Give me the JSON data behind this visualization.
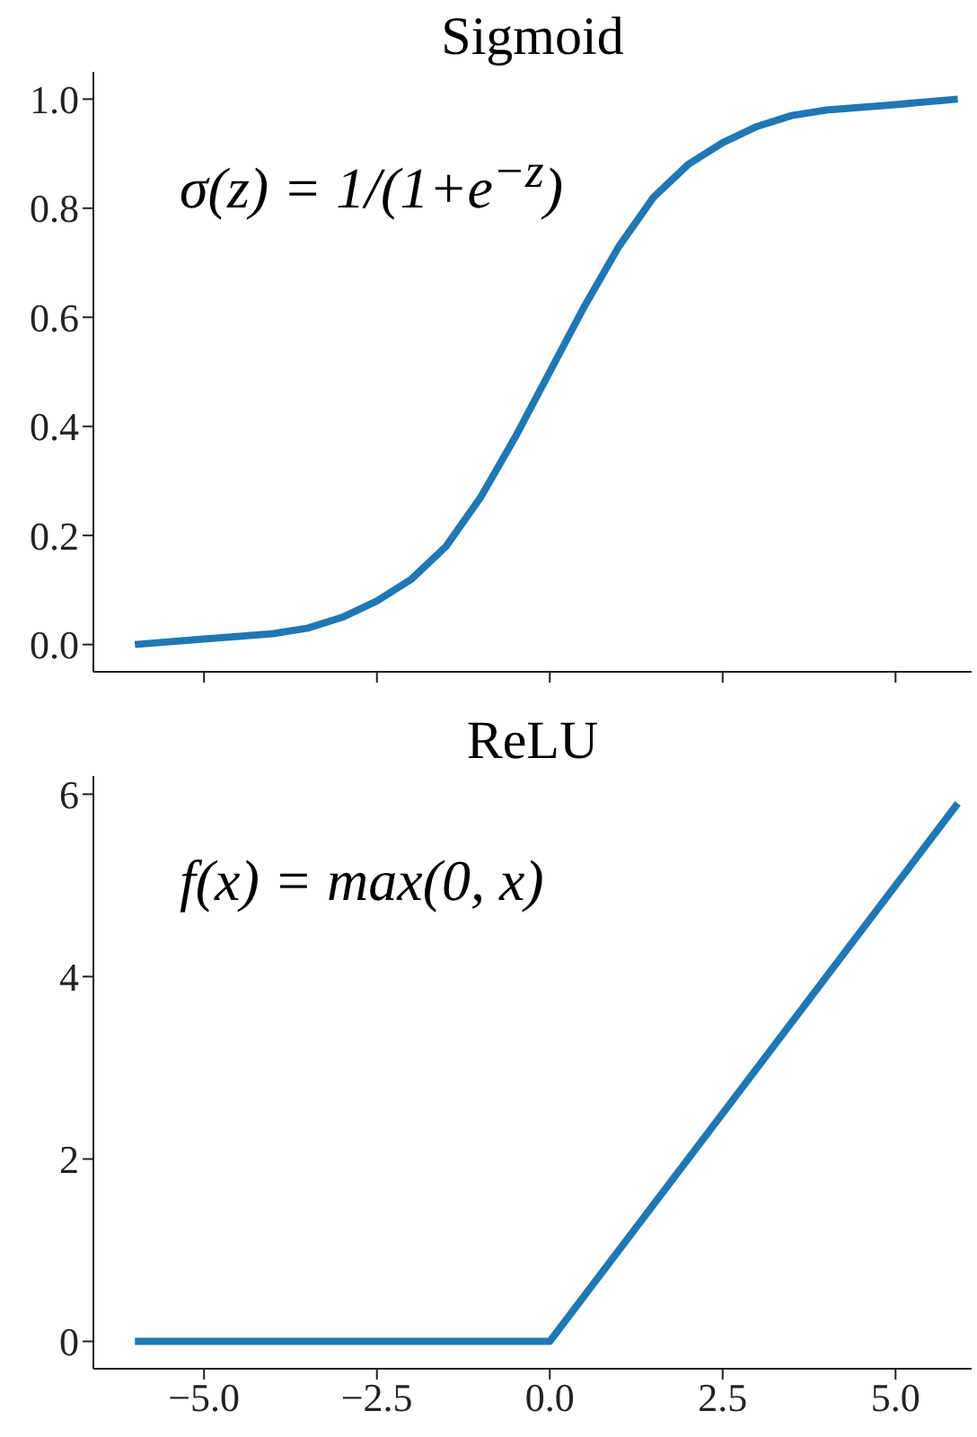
{
  "chart_data": [
    {
      "type": "line",
      "title": "Sigmoid",
      "annotations": [
        "σ(z) = 1/(1+e$^{−z}$)"
      ],
      "x": [
        -6,
        -5,
        -4,
        -3.5,
        -3,
        -2.5,
        -2,
        -1.5,
        -1,
        -0.5,
        0,
        0.5,
        1,
        1.5,
        2,
        2.5,
        3,
        3.5,
        4,
        5,
        5.9
      ],
      "series": [
        {
          "color": "#1f77b4",
          "values": [
            0.0,
            0.01,
            0.02,
            0.03,
            0.05,
            0.08,
            0.12,
            0.18,
            0.27,
            0.38,
            0.5,
            0.62,
            0.73,
            0.82,
            0.88,
            0.92,
            0.95,
            0.97,
            0.98,
            0.99,
            1.0
          ]
        }
      ],
      "xlim": [
        -6.6,
        6.1
      ],
      "xticks": [
        {
          "value": -5,
          "label": null
        },
        {
          "value": -2.5,
          "label": null
        },
        {
          "value": 0,
          "label": null
        },
        {
          "value": 2.5,
          "label": null
        },
        {
          "value": 5,
          "label": null
        }
      ],
      "ylim": [
        -0.05,
        1.05
      ],
      "yticks": [
        {
          "value": 0,
          "label": "0.0"
        },
        {
          "value": 0.2,
          "label": "0.2"
        },
        {
          "value": 0.4,
          "label": "0.4"
        },
        {
          "value": 0.6,
          "label": "0.6"
        },
        {
          "value": 0.8,
          "label": "0.8"
        },
        {
          "value": 1,
          "label": "1.0"
        }
      ],
      "tick_labels": "y",
      "line_style": "solid"
    },
    {
      "type": "line",
      "title": "ReLU",
      "annotations": [
        "f(x) = max(0, x)"
      ],
      "x": [
        -6,
        0,
        5.9
      ],
      "series": [
        {
          "color": "#1f77b4",
          "values": [
            0,
            0,
            5.9
          ]
        }
      ],
      "xlim": [
        -6.6,
        6.1
      ],
      "xticks": [
        {
          "value": -5,
          "label": "−5.0"
        },
        {
          "value": -2.5,
          "label": "−2.5"
        },
        {
          "value": 0,
          "label": "0.0"
        },
        {
          "value": 2.5,
          "label": "2.5"
        },
        {
          "value": 5,
          "label": "5.0"
        }
      ],
      "ylim": [
        -0.3,
        6.2
      ],
      "yticks": [
        0,
        2,
        4,
        6
      ],
      "line_style": "solid"
    }
  ]
}
